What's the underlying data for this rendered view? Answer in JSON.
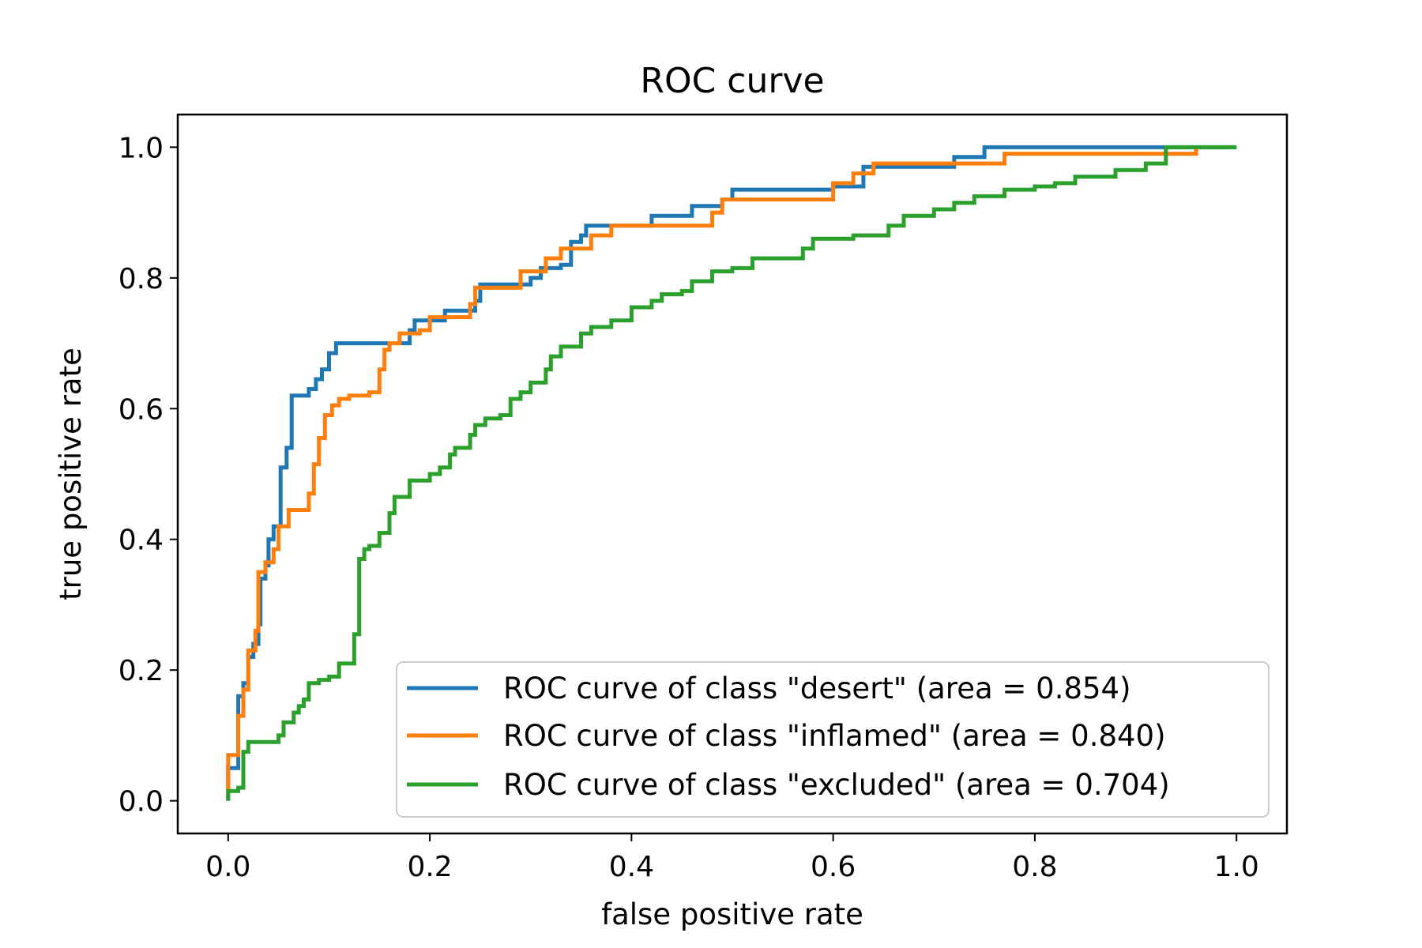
{
  "chart_data": {
    "type": "line",
    "title": "ROC curve",
    "xlabel": "false positive rate",
    "ylabel": "true positive rate",
    "xlim": [
      -0.05,
      1.05
    ],
    "ylim": [
      -0.05,
      1.05
    ],
    "xticks": [
      0.0,
      0.2,
      0.4,
      0.6,
      0.8,
      1.0
    ],
    "yticks": [
      0.0,
      0.2,
      0.4,
      0.6,
      0.8,
      1.0
    ],
    "xtick_labels": [
      "0.0",
      "0.2",
      "0.4",
      "0.6",
      "0.8",
      "1.0"
    ],
    "ytick_labels": [
      "0.0",
      "0.2",
      "0.4",
      "0.6",
      "0.8",
      "1.0"
    ],
    "grid": false,
    "legend_position": "lower-right",
    "series": [
      {
        "name": "ROC curve of class \"desert\" (area = 0.854)",
        "color": "#1f77b4",
        "points": [
          [
            0.0,
            0.0
          ],
          [
            0.0,
            0.05
          ],
          [
            0.01,
            0.05
          ],
          [
            0.01,
            0.16
          ],
          [
            0.015,
            0.16
          ],
          [
            0.015,
            0.18
          ],
          [
            0.02,
            0.18
          ],
          [
            0.02,
            0.22
          ],
          [
            0.025,
            0.22
          ],
          [
            0.025,
            0.24
          ],
          [
            0.03,
            0.24
          ],
          [
            0.03,
            0.27
          ],
          [
            0.032,
            0.27
          ],
          [
            0.032,
            0.34
          ],
          [
            0.037,
            0.34
          ],
          [
            0.037,
            0.36
          ],
          [
            0.04,
            0.36
          ],
          [
            0.04,
            0.4
          ],
          [
            0.045,
            0.4
          ],
          [
            0.045,
            0.42
          ],
          [
            0.052,
            0.42
          ],
          [
            0.052,
            0.51
          ],
          [
            0.058,
            0.51
          ],
          [
            0.058,
            0.54
          ],
          [
            0.063,
            0.54
          ],
          [
            0.063,
            0.62
          ],
          [
            0.08,
            0.62
          ],
          [
            0.08,
            0.63
          ],
          [
            0.087,
            0.63
          ],
          [
            0.087,
            0.645
          ],
          [
            0.093,
            0.645
          ],
          [
            0.093,
            0.66
          ],
          [
            0.1,
            0.66
          ],
          [
            0.1,
            0.685
          ],
          [
            0.107,
            0.685
          ],
          [
            0.107,
            0.7
          ],
          [
            0.18,
            0.7
          ],
          [
            0.18,
            0.72
          ],
          [
            0.185,
            0.72
          ],
          [
            0.185,
            0.735
          ],
          [
            0.215,
            0.735
          ],
          [
            0.215,
            0.75
          ],
          [
            0.245,
            0.75
          ],
          [
            0.245,
            0.765
          ],
          [
            0.25,
            0.765
          ],
          [
            0.25,
            0.79
          ],
          [
            0.3,
            0.79
          ],
          [
            0.3,
            0.8
          ],
          [
            0.31,
            0.8
          ],
          [
            0.31,
            0.815
          ],
          [
            0.33,
            0.815
          ],
          [
            0.33,
            0.82
          ],
          [
            0.34,
            0.82
          ],
          [
            0.34,
            0.855
          ],
          [
            0.35,
            0.855
          ],
          [
            0.35,
            0.865
          ],
          [
            0.355,
            0.865
          ],
          [
            0.355,
            0.88
          ],
          [
            0.42,
            0.88
          ],
          [
            0.42,
            0.895
          ],
          [
            0.46,
            0.895
          ],
          [
            0.46,
            0.91
          ],
          [
            0.49,
            0.91
          ],
          [
            0.49,
            0.92
          ],
          [
            0.5,
            0.92
          ],
          [
            0.5,
            0.935
          ],
          [
            0.6,
            0.935
          ],
          [
            0.6,
            0.94
          ],
          [
            0.63,
            0.94
          ],
          [
            0.63,
            0.97
          ],
          [
            0.72,
            0.97
          ],
          [
            0.72,
            0.985
          ],
          [
            0.75,
            0.985
          ],
          [
            0.75,
            1.0
          ],
          [
            1.0,
            1.0
          ]
        ]
      },
      {
        "name": "ROC curve of class \"inflamed\" (area = 0.840)",
        "color": "#ff7f0e",
        "points": [
          [
            0.0,
            0.01
          ],
          [
            0.0,
            0.07
          ],
          [
            0.01,
            0.07
          ],
          [
            0.01,
            0.13
          ],
          [
            0.015,
            0.13
          ],
          [
            0.015,
            0.17
          ],
          [
            0.02,
            0.17
          ],
          [
            0.02,
            0.23
          ],
          [
            0.027,
            0.23
          ],
          [
            0.027,
            0.26
          ],
          [
            0.03,
            0.26
          ],
          [
            0.03,
            0.35
          ],
          [
            0.037,
            0.35
          ],
          [
            0.037,
            0.365
          ],
          [
            0.045,
            0.365
          ],
          [
            0.045,
            0.385
          ],
          [
            0.05,
            0.385
          ],
          [
            0.05,
            0.42
          ],
          [
            0.06,
            0.42
          ],
          [
            0.06,
            0.445
          ],
          [
            0.08,
            0.445
          ],
          [
            0.08,
            0.47
          ],
          [
            0.085,
            0.47
          ],
          [
            0.085,
            0.515
          ],
          [
            0.09,
            0.515
          ],
          [
            0.09,
            0.555
          ],
          [
            0.096,
            0.555
          ],
          [
            0.096,
            0.59
          ],
          [
            0.103,
            0.59
          ],
          [
            0.103,
            0.605
          ],
          [
            0.11,
            0.605
          ],
          [
            0.11,
            0.615
          ],
          [
            0.12,
            0.615
          ],
          [
            0.12,
            0.62
          ],
          [
            0.14,
            0.62
          ],
          [
            0.14,
            0.625
          ],
          [
            0.15,
            0.625
          ],
          [
            0.15,
            0.66
          ],
          [
            0.155,
            0.66
          ],
          [
            0.155,
            0.69
          ],
          [
            0.16,
            0.69
          ],
          [
            0.16,
            0.7
          ],
          [
            0.17,
            0.7
          ],
          [
            0.17,
            0.715
          ],
          [
            0.19,
            0.715
          ],
          [
            0.19,
            0.72
          ],
          [
            0.2,
            0.72
          ],
          [
            0.2,
            0.74
          ],
          [
            0.24,
            0.74
          ],
          [
            0.24,
            0.76
          ],
          [
            0.245,
            0.76
          ],
          [
            0.245,
            0.785
          ],
          [
            0.29,
            0.785
          ],
          [
            0.29,
            0.81
          ],
          [
            0.315,
            0.81
          ],
          [
            0.315,
            0.83
          ],
          [
            0.33,
            0.83
          ],
          [
            0.33,
            0.845
          ],
          [
            0.36,
            0.845
          ],
          [
            0.36,
            0.865
          ],
          [
            0.38,
            0.865
          ],
          [
            0.38,
            0.88
          ],
          [
            0.48,
            0.88
          ],
          [
            0.48,
            0.9
          ],
          [
            0.49,
            0.9
          ],
          [
            0.49,
            0.92
          ],
          [
            0.6,
            0.92
          ],
          [
            0.6,
            0.945
          ],
          [
            0.62,
            0.945
          ],
          [
            0.62,
            0.96
          ],
          [
            0.64,
            0.96
          ],
          [
            0.64,
            0.975
          ],
          [
            0.77,
            0.975
          ],
          [
            0.77,
            0.99
          ],
          [
            0.96,
            0.99
          ],
          [
            0.96,
            1.0
          ]
        ]
      },
      {
        "name": "ROC curve of class \"excluded\" (area = 0.704)",
        "color": "#2ca02c",
        "points": [
          [
            0.0,
            0.0
          ],
          [
            0.0,
            0.015
          ],
          [
            0.01,
            0.015
          ],
          [
            0.01,
            0.02
          ],
          [
            0.015,
            0.02
          ],
          [
            0.015,
            0.075
          ],
          [
            0.02,
            0.075
          ],
          [
            0.02,
            0.09
          ],
          [
            0.05,
            0.09
          ],
          [
            0.05,
            0.1
          ],
          [
            0.055,
            0.1
          ],
          [
            0.055,
            0.12
          ],
          [
            0.065,
            0.12
          ],
          [
            0.065,
            0.135
          ],
          [
            0.07,
            0.135
          ],
          [
            0.07,
            0.145
          ],
          [
            0.075,
            0.145
          ],
          [
            0.075,
            0.155
          ],
          [
            0.08,
            0.155
          ],
          [
            0.08,
            0.18
          ],
          [
            0.09,
            0.18
          ],
          [
            0.09,
            0.185
          ],
          [
            0.1,
            0.185
          ],
          [
            0.1,
            0.19
          ],
          [
            0.11,
            0.19
          ],
          [
            0.11,
            0.21
          ],
          [
            0.125,
            0.21
          ],
          [
            0.125,
            0.255
          ],
          [
            0.13,
            0.255
          ],
          [
            0.13,
            0.37
          ],
          [
            0.135,
            0.37
          ],
          [
            0.135,
            0.385
          ],
          [
            0.14,
            0.385
          ],
          [
            0.14,
            0.39
          ],
          [
            0.15,
            0.39
          ],
          [
            0.15,
            0.41
          ],
          [
            0.16,
            0.41
          ],
          [
            0.16,
            0.44
          ],
          [
            0.165,
            0.44
          ],
          [
            0.165,
            0.465
          ],
          [
            0.18,
            0.465
          ],
          [
            0.18,
            0.49
          ],
          [
            0.2,
            0.49
          ],
          [
            0.2,
            0.5
          ],
          [
            0.21,
            0.5
          ],
          [
            0.21,
            0.51
          ],
          [
            0.22,
            0.51
          ],
          [
            0.22,
            0.53
          ],
          [
            0.225,
            0.53
          ],
          [
            0.225,
            0.54
          ],
          [
            0.24,
            0.54
          ],
          [
            0.24,
            0.56
          ],
          [
            0.245,
            0.56
          ],
          [
            0.245,
            0.575
          ],
          [
            0.255,
            0.575
          ],
          [
            0.255,
            0.585
          ],
          [
            0.27,
            0.585
          ],
          [
            0.27,
            0.59
          ],
          [
            0.28,
            0.59
          ],
          [
            0.28,
            0.615
          ],
          [
            0.29,
            0.615
          ],
          [
            0.29,
            0.625
          ],
          [
            0.3,
            0.625
          ],
          [
            0.3,
            0.64
          ],
          [
            0.315,
            0.64
          ],
          [
            0.315,
            0.66
          ],
          [
            0.32,
            0.66
          ],
          [
            0.32,
            0.68
          ],
          [
            0.33,
            0.68
          ],
          [
            0.33,
            0.695
          ],
          [
            0.35,
            0.695
          ],
          [
            0.35,
            0.715
          ],
          [
            0.36,
            0.715
          ],
          [
            0.36,
            0.725
          ],
          [
            0.38,
            0.725
          ],
          [
            0.38,
            0.735
          ],
          [
            0.4,
            0.735
          ],
          [
            0.4,
            0.755
          ],
          [
            0.42,
            0.755
          ],
          [
            0.42,
            0.765
          ],
          [
            0.43,
            0.765
          ],
          [
            0.43,
            0.775
          ],
          [
            0.45,
            0.775
          ],
          [
            0.45,
            0.78
          ],
          [
            0.46,
            0.78
          ],
          [
            0.46,
            0.795
          ],
          [
            0.48,
            0.795
          ],
          [
            0.48,
            0.81
          ],
          [
            0.5,
            0.81
          ],
          [
            0.5,
            0.815
          ],
          [
            0.52,
            0.815
          ],
          [
            0.52,
            0.83
          ],
          [
            0.57,
            0.83
          ],
          [
            0.57,
            0.845
          ],
          [
            0.58,
            0.845
          ],
          [
            0.58,
            0.86
          ],
          [
            0.62,
            0.86
          ],
          [
            0.62,
            0.865
          ],
          [
            0.655,
            0.865
          ],
          [
            0.655,
            0.88
          ],
          [
            0.67,
            0.88
          ],
          [
            0.67,
            0.895
          ],
          [
            0.7,
            0.895
          ],
          [
            0.7,
            0.905
          ],
          [
            0.72,
            0.905
          ],
          [
            0.72,
            0.915
          ],
          [
            0.74,
            0.915
          ],
          [
            0.74,
            0.925
          ],
          [
            0.77,
            0.925
          ],
          [
            0.77,
            0.935
          ],
          [
            0.8,
            0.935
          ],
          [
            0.8,
            0.94
          ],
          [
            0.82,
            0.94
          ],
          [
            0.82,
            0.945
          ],
          [
            0.84,
            0.945
          ],
          [
            0.84,
            0.955
          ],
          [
            0.88,
            0.955
          ],
          [
            0.88,
            0.965
          ],
          [
            0.91,
            0.965
          ],
          [
            0.91,
            0.975
          ],
          [
            0.93,
            0.975
          ],
          [
            0.93,
            1.0
          ],
          [
            1.0,
            1.0
          ]
        ]
      }
    ]
  }
}
